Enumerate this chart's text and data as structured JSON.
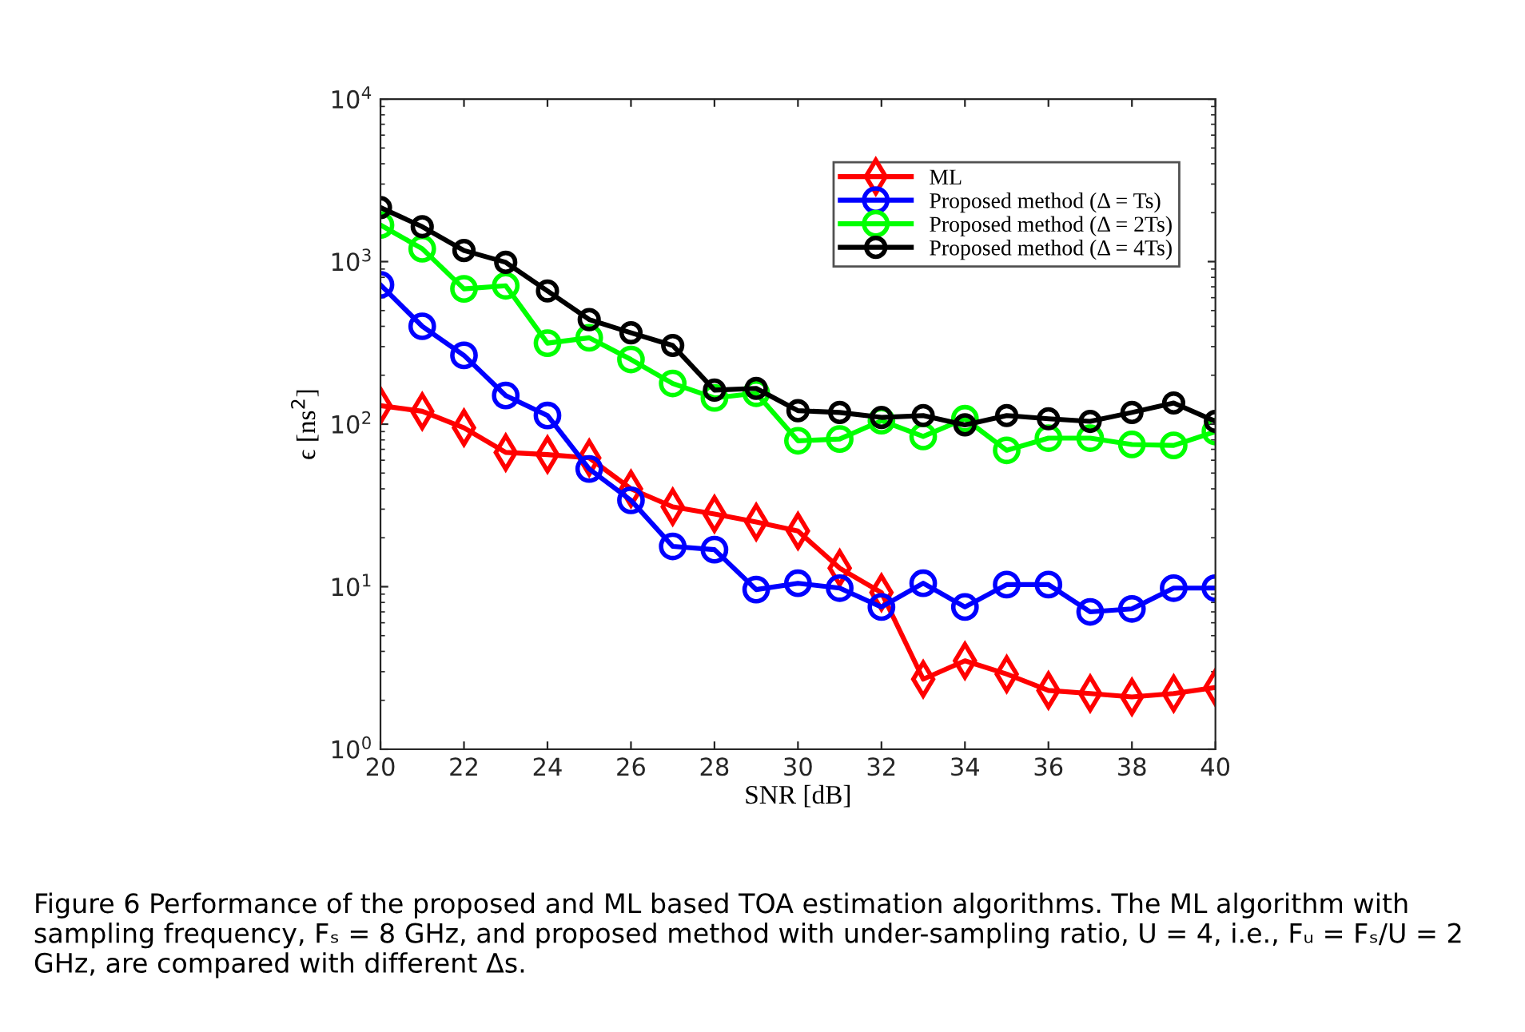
{
  "chart_data": {
    "type": "line",
    "xlabel": "SNR [dB]",
    "ylabel": "ϵ [ns$^{2}$]",
    "log": "y",
    "x": [
      20,
      21,
      22,
      23,
      24,
      25,
      26,
      27,
      28,
      29,
      30,
      31,
      32,
      33,
      34,
      35,
      36,
      37,
      38,
      39,
      40
    ],
    "xlim": [
      20,
      40
    ],
    "xticks": [
      20,
      22,
      24,
      26,
      28,
      30,
      32,
      34,
      36,
      38,
      40
    ],
    "ylim": [
      1,
      10000
    ],
    "yticks": [
      {
        "value": 1,
        "label": "10$^{0}$"
      },
      {
        "value": 10,
        "label": "10$^{1}$"
      },
      {
        "value": 100,
        "label": "10$^{2}$"
      },
      {
        "value": 1000,
        "label": "10$^{3}$"
      },
      {
        "value": 10000,
        "label": "10$^{4}$"
      }
    ],
    "grid": false,
    "legend": "top right",
    "line_style": "solid",
    "series": [
      {
        "name": "ML",
        "color": "#ff0000",
        "marker": "diamond",
        "values": [
          130,
          120,
          95,
          67,
          65,
          62,
          40,
          31,
          28,
          25,
          22,
          13,
          9.2,
          2.7,
          3.5,
          2.9,
          2.3,
          2.2,
          2.1,
          2.2,
          2.4
        ]
      },
      {
        "name": "Proposed method (Δ = Ts)",
        "color": "#0000ff",
        "marker": "circle",
        "values": [
          720,
          400,
          265,
          150,
          113,
          53,
          34,
          17.7,
          16.9,
          9.6,
          10.5,
          9.8,
          7.5,
          10.5,
          7.5,
          10.3,
          10.3,
          7,
          7.3,
          9.8,
          9.8
        ]
      },
      {
        "name": "Proposed method (Δ = 2Ts)",
        "color": "#00ff00",
        "marker": "circle",
        "values": [
          1680,
          1200,
          680,
          710,
          315,
          340,
          250,
          178,
          145,
          155,
          79,
          81,
          105,
          84,
          108,
          69,
          82,
          82,
          75,
          74,
          90
        ]
      },
      {
        "name": "Proposed method (Δ = 4Ts)",
        "color": "#000000",
        "marker": "circle",
        "values": [
          2150,
          1640,
          1170,
          990,
          660,
          440,
          365,
          305,
          162,
          166,
          121,
          118,
          110,
          113,
          99,
          113,
          108,
          104,
          118,
          135,
          104
        ]
      }
    ],
    "annotations": [
      "Figure 6 Performance of the proposed and ML based TOA estimation algorithms. The ML algorithm with sampling frequency, Fₛ = 8 GHz, and proposed method with under-sampling ratio, U = 4, i.e., Fᵤ = Fₛ/U = 2 GHz, are compared with different Δs."
    ]
  }
}
